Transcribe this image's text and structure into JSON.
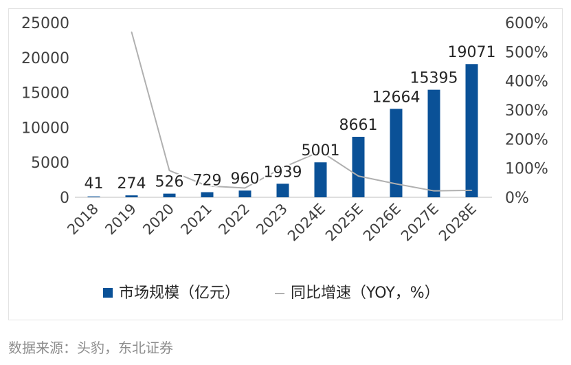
{
  "chart_data": {
    "type": "bar",
    "categories": [
      "2018",
      "2019",
      "2020",
      "2021",
      "2022",
      "2023",
      "2024E",
      "2025E",
      "2026E",
      "2027E",
      "2028E"
    ],
    "series": [
      {
        "name": "市场规模（亿元）",
        "type": "bar",
        "axis": "left",
        "color": "#0a5197",
        "values": [
          41,
          274,
          526,
          729,
          960,
          1939,
          5001,
          8661,
          12664,
          15395,
          19071
        ]
      },
      {
        "name": "同比增速（YOY，%）",
        "type": "line",
        "axis": "right",
        "color": "#b0b0b0",
        "values": [
          null,
          568,
          92,
          39,
          32,
          102,
          158,
          73,
          46,
          22,
          24
        ]
      }
    ],
    "value_labels": [
      "41",
      "274",
      "526",
      "729",
      "960",
      "1939",
      "5001",
      "8661",
      "12664",
      "15395",
      "19071"
    ],
    "y_left": {
      "ylim": [
        0,
        25000
      ],
      "ticks": [
        "0",
        "5000",
        "10000",
        "15000",
        "20000",
        "25000"
      ]
    },
    "y_right": {
      "ylim": [
        0,
        600
      ],
      "ticks": [
        "0%",
        "100%",
        "200%",
        "300%",
        "400%",
        "500%",
        "600%"
      ]
    },
    "grid": false,
    "legend_position": "bottom"
  },
  "source": "数据来源：头豹，东北证券"
}
